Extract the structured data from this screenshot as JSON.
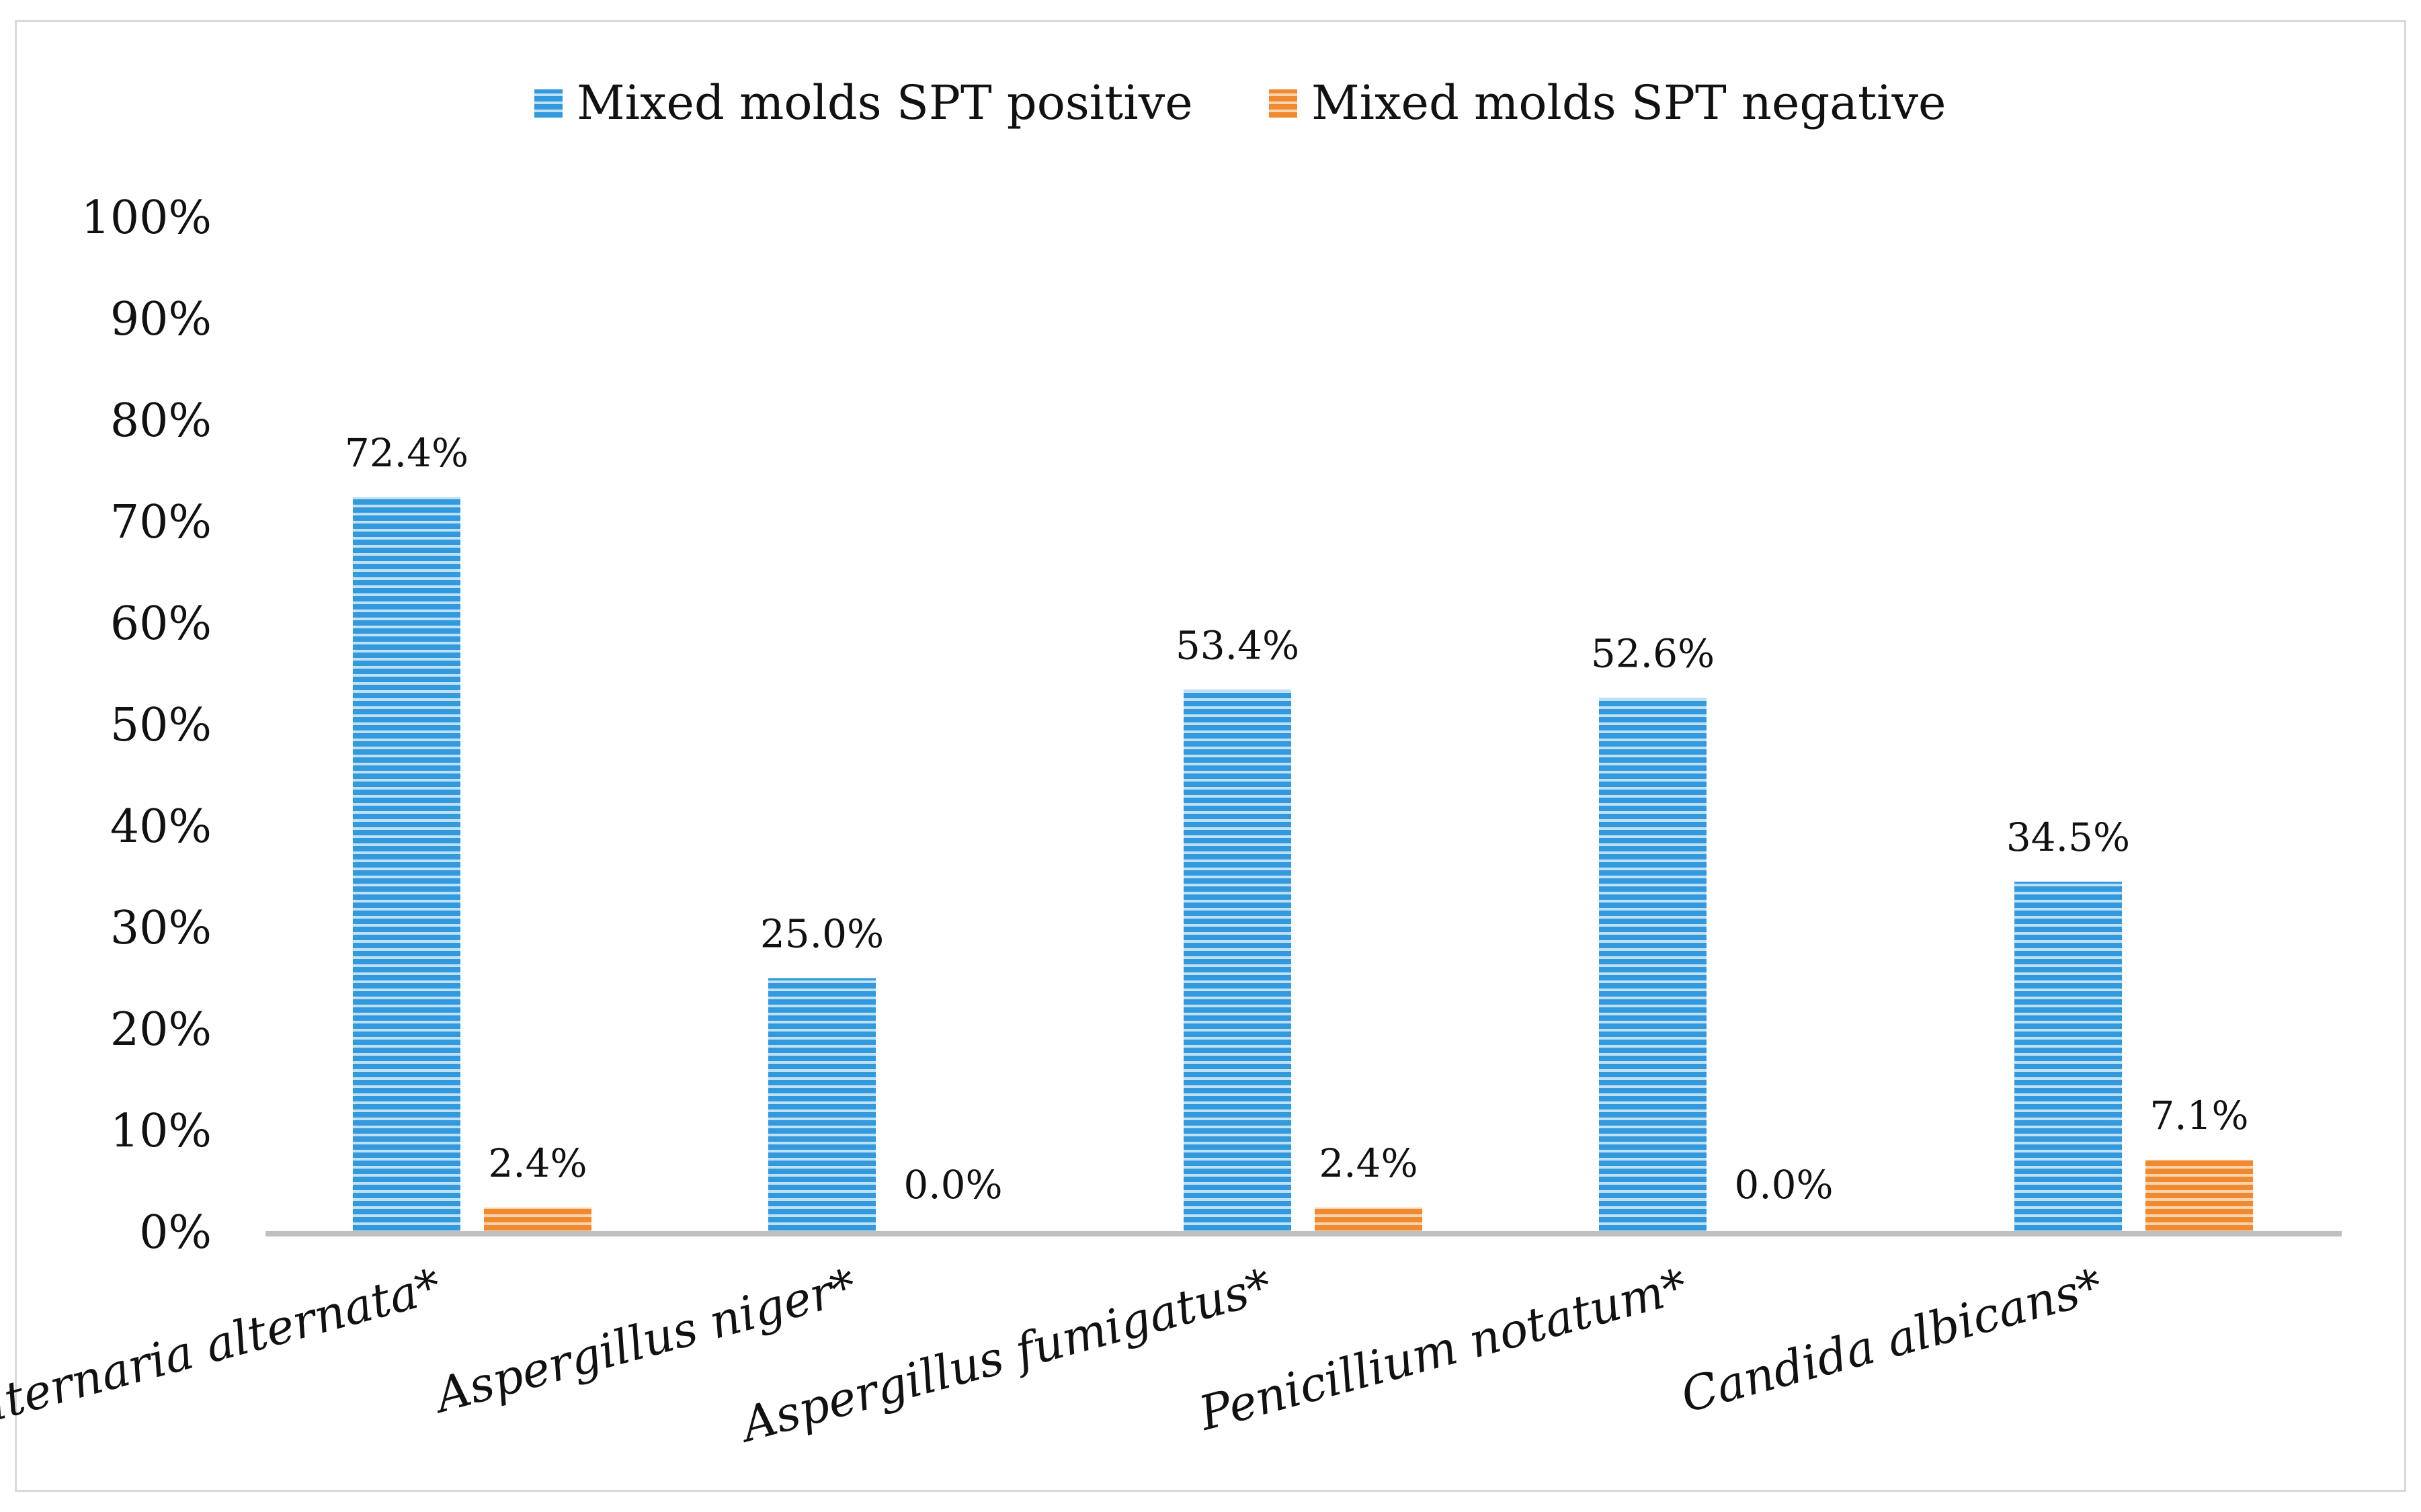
{
  "chart_data": {
    "type": "bar",
    "categories": [
      "Alternaria alternata*",
      "Aspergillus niger*",
      "Aspergillus fumigatus*",
      "Penicillium notatum*",
      "Candida albicans*"
    ],
    "series": [
      {
        "name": "Mixed molds SPT positive",
        "values": [
          72.4,
          25.0,
          53.4,
          52.6,
          34.5
        ],
        "labels": [
          "72.4%",
          "25.0%",
          "53.4%",
          "52.6%",
          "34.5%"
        ],
        "color": "#3399dd",
        "stripe_color": "#bfe1f7",
        "pattern": "horizontal-stripes"
      },
      {
        "name": "Mixed molds SPT negative",
        "values": [
          2.4,
          0.0,
          2.4,
          0.0,
          7.1
        ],
        "labels": [
          "2.4%",
          "0.0%",
          "2.4%",
          "0.0%",
          "7.1%"
        ],
        "color": "#f08a30",
        "stripe_color": "#fbd3ad",
        "pattern": "horizontal-stripes"
      }
    ],
    "ylim": [
      0,
      100
    ],
    "yticks": [
      0,
      10,
      20,
      30,
      40,
      50,
      60,
      70,
      80,
      90,
      100
    ],
    "ytick_labels": [
      "0%",
      "10%",
      "20%",
      "30%",
      "40%",
      "50%",
      "60%",
      "70%",
      "80%",
      "90%",
      "100%"
    ],
    "axis_color": "#bfbfbf",
    "grid": false,
    "legend_position": "top-center",
    "category_label_style": "italic, rotated"
  }
}
